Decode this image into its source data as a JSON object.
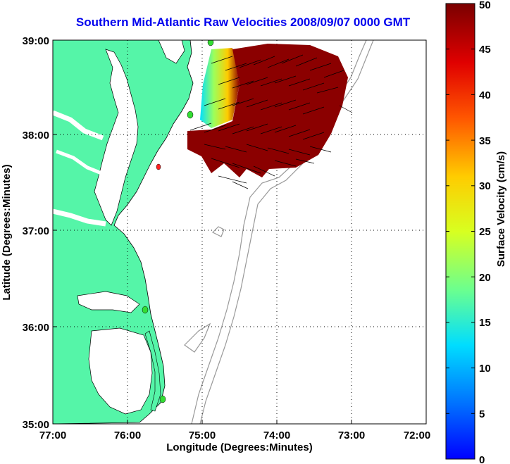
{
  "title": "Southern Mid-Atlantic Raw Velocities 2008/09/07 0000 GMT",
  "map": {
    "xlabel": "Longitude (Degrees:Minutes)",
    "ylabel": "Latitude (Degrees:Minutes)",
    "x_ticks": [
      "77:00",
      "76:00",
      "75:00",
      "74:00",
      "73:00",
      "72:00"
    ],
    "y_ticks": [
      "39:00",
      "38:00",
      "37:00",
      "36:00",
      "35:00"
    ],
    "lon_range": [
      -77,
      -72
    ],
    "lat_range": [
      35,
      39
    ],
    "land_color": "#55f5a8",
    "grid": "dotted"
  },
  "colorbar": {
    "label": "Surface Velocity (cm/s)",
    "ticks": [
      "0",
      "5",
      "10",
      "15",
      "20",
      "25",
      "30",
      "35",
      "40",
      "45",
      "50"
    ],
    "range": [
      0,
      50
    ],
    "colormap": "jet"
  }
}
